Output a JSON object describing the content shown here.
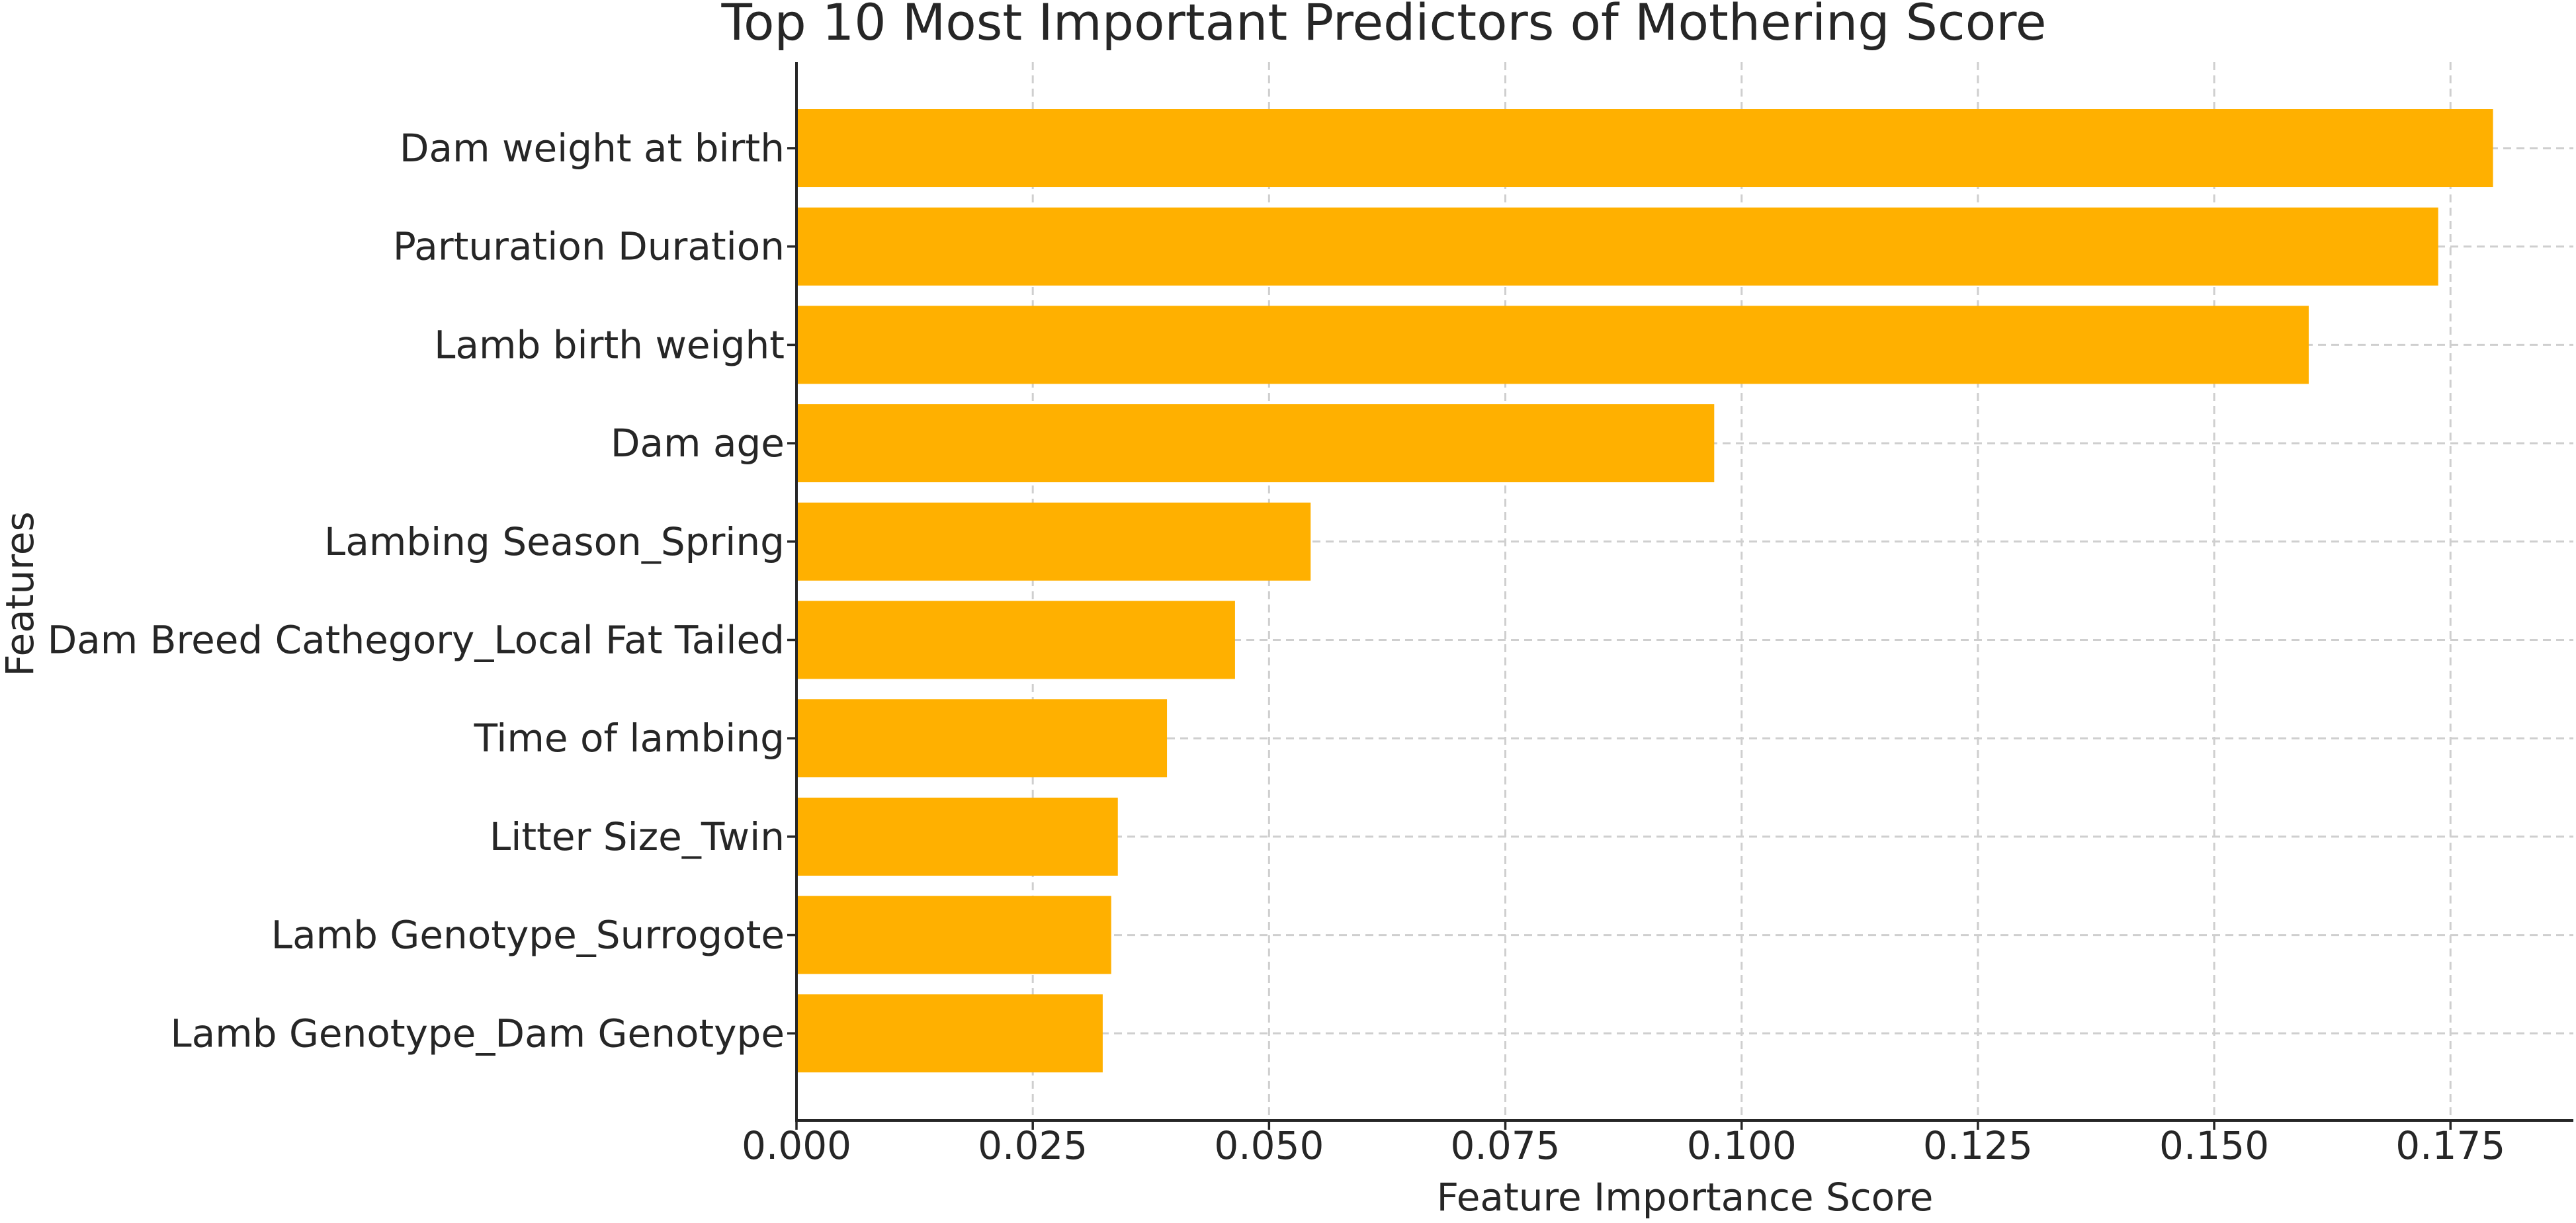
{
  "chart_data": {
    "type": "bar",
    "orientation": "horizontal",
    "title": "Top 10 Most Important Predictors of Mothering Score",
    "xlabel": "Feature Importance Score",
    "ylabel": "Features",
    "categories": [
      "Dam weight at birth",
      "Parturation Duration",
      "Lamb birth weight",
      "Dam age",
      "Lambing Season_Spring",
      "Dam Breed Cathegory_Local Fat Tailed",
      "Time of lambing",
      "Litter Size_Twin",
      "Lamb Genotype_Surrogote",
      "Lamb Genotype_Dam Genotype"
    ],
    "values": [
      0.1795,
      0.1737,
      0.16,
      0.0971,
      0.0544,
      0.0464,
      0.0392,
      0.034,
      0.0333,
      0.0324
    ],
    "xlim": [
      0,
      0.188
    ],
    "xticks": [
      "0.000",
      "0.025",
      "0.050",
      "0.075",
      "0.100",
      "0.125",
      "0.150",
      "0.175"
    ],
    "xtick_values": [
      0,
      0.025,
      0.05,
      0.075,
      0.1,
      0.125,
      0.15,
      0.175
    ],
    "grid": true,
    "bar_color": "#FFB000"
  }
}
